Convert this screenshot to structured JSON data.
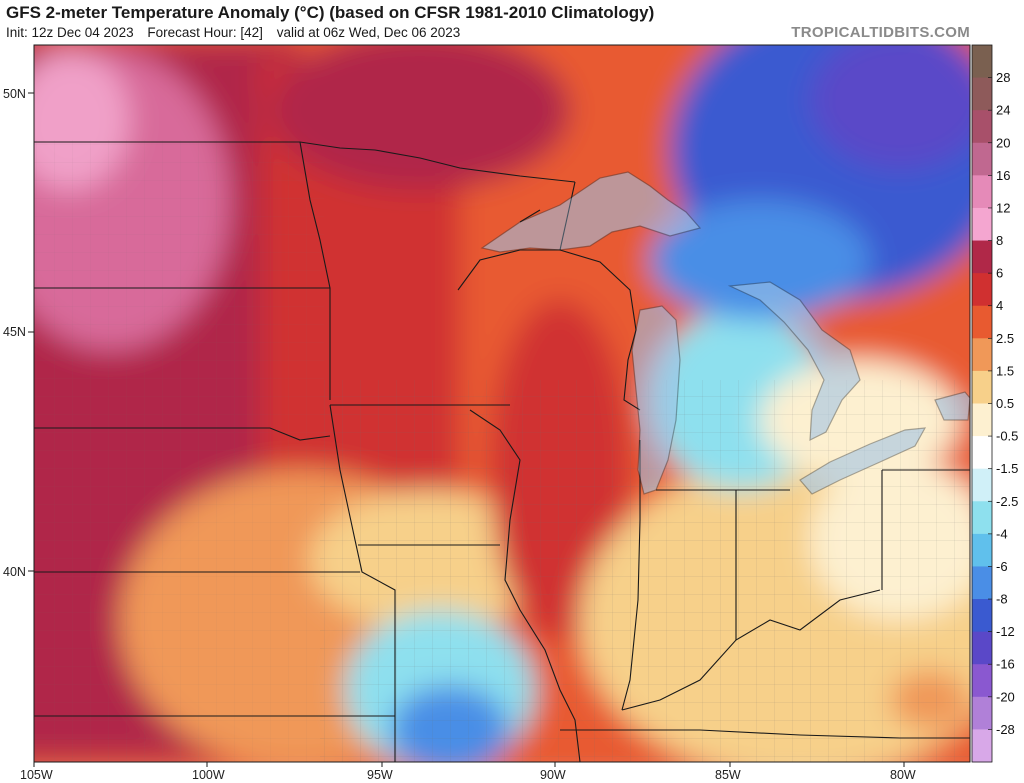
{
  "header": {
    "title": "GFS 2-meter Temperature Anomaly (°C) (based on CFSR 1981-2010 Climatology)",
    "init": "Init: 12z Dec 04 2023",
    "forecast_hour": "Forecast Hour: [42]",
    "valid": "valid at 06z Wed, Dec 06 2023",
    "brand": "TROPICALTIDBITS.COM"
  },
  "axes": {
    "lat_labels": [
      "50N",
      "45N",
      "40N"
    ],
    "lon_labels": [
      "105W",
      "100W",
      "95W",
      "90W",
      "85W",
      "80W"
    ]
  },
  "colorbar": {
    "labels": [
      "28",
      "24",
      "20",
      "16",
      "12",
      "8",
      "6",
      "4",
      "2.5",
      "1.5",
      "0.5",
      "-0.5",
      "-1.5",
      "-2.5",
      "-4",
      "-6",
      "-8",
      "-12",
      "-16",
      "-20",
      "-28"
    ],
    "colors": [
      "#7a6050",
      "#8e5a5a",
      "#a8506a",
      "#c06890",
      "#e58ab8",
      "#f4a6d0",
      "#b02848",
      "#d03030",
      "#e85a30",
      "#f09858",
      "#f7d08a",
      "#fdf0d0",
      "#ffffff",
      "#d0f0f8",
      "#8ee0ee",
      "#60c0ec",
      "#4a8ee6",
      "#3a5ad0",
      "#5a48c8",
      "#8a58d0",
      "#b080d8",
      "#d8a8e8"
    ]
  },
  "map_colors": {
    "warm_strong": "#b02848",
    "warm": "#d03030",
    "warm_mid": "#e85a30",
    "warm_light": "#f09858",
    "pale_warm": "#f7d08a",
    "neutral": "#fdf0d0",
    "cool_light": "#8ee0ee",
    "cool": "#4a8ee6",
    "cold": "#3a5ad0",
    "cold_strong": "#5a48c8",
    "lake": "#9fc3e6"
  }
}
